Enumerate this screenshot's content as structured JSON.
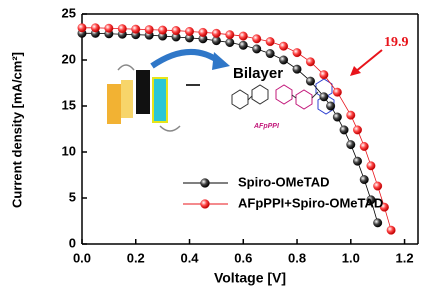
{
  "chart_data": {
    "type": "scatter",
    "x_label": "Voltage [V]",
    "y_label": "Current density [mA/cm²]",
    "xlim": [
      0,
      1.25
    ],
    "ylim": [
      0,
      25
    ],
    "xticks": [
      {
        "value": 0,
        "label": "0.0"
      },
      {
        "value": 0.2,
        "label": "0.2"
      },
      {
        "value": 0.4,
        "label": "0.4"
      },
      {
        "value": 0.6,
        "label": "0.6"
      },
      {
        "value": 0.8,
        "label": "0.8"
      },
      {
        "value": 1,
        "label": "1.0"
      },
      {
        "value": 1.2,
        "label": "1.2"
      }
    ],
    "yticks": [
      0,
      5,
      10,
      15,
      20,
      25
    ],
    "series": [
      {
        "name": "Spiro-OMeTAD",
        "color": "#000000",
        "x": [
          0,
          0.05,
          0.1,
          0.15,
          0.2,
          0.25,
          0.3,
          0.35,
          0.4,
          0.45,
          0.5,
          0.55,
          0.6,
          0.65,
          0.7,
          0.75,
          0.8,
          0.85,
          0.9,
          0.925,
          0.95,
          0.975,
          1.0,
          1.025,
          1.05,
          1.075,
          1.1
        ],
        "values": [
          22.9,
          22.9,
          22.85,
          22.8,
          22.75,
          22.7,
          22.6,
          22.5,
          22.4,
          22.3,
          22.1,
          21.9,
          21.6,
          21.2,
          20.7,
          20.0,
          19.0,
          17.7,
          16.0,
          15.0,
          13.8,
          12.4,
          10.8,
          9.0,
          7.0,
          4.8,
          2.3
        ]
      },
      {
        "name": "AFpPPI+Spiro-OMeTAD",
        "color": "#e8141b",
        "x": [
          0,
          0.05,
          0.1,
          0.15,
          0.2,
          0.25,
          0.3,
          0.35,
          0.4,
          0.45,
          0.5,
          0.55,
          0.6,
          0.65,
          0.7,
          0.75,
          0.8,
          0.85,
          0.9,
          0.95,
          1.0,
          1.025,
          1.05,
          1.075,
          1.1,
          1.125,
          1.15
        ],
        "values": [
          23.5,
          23.5,
          23.45,
          23.4,
          23.35,
          23.3,
          23.25,
          23.2,
          23.1,
          23.0,
          22.9,
          22.75,
          22.6,
          22.3,
          22.0,
          21.5,
          20.8,
          19.8,
          18.4,
          16.5,
          14.0,
          12.4,
          10.6,
          8.5,
          6.3,
          4.0,
          1.5
        ]
      }
    ],
    "annotations": [
      "19.9",
      "Bilayer",
      "AFpPPI"
    ]
  }
}
